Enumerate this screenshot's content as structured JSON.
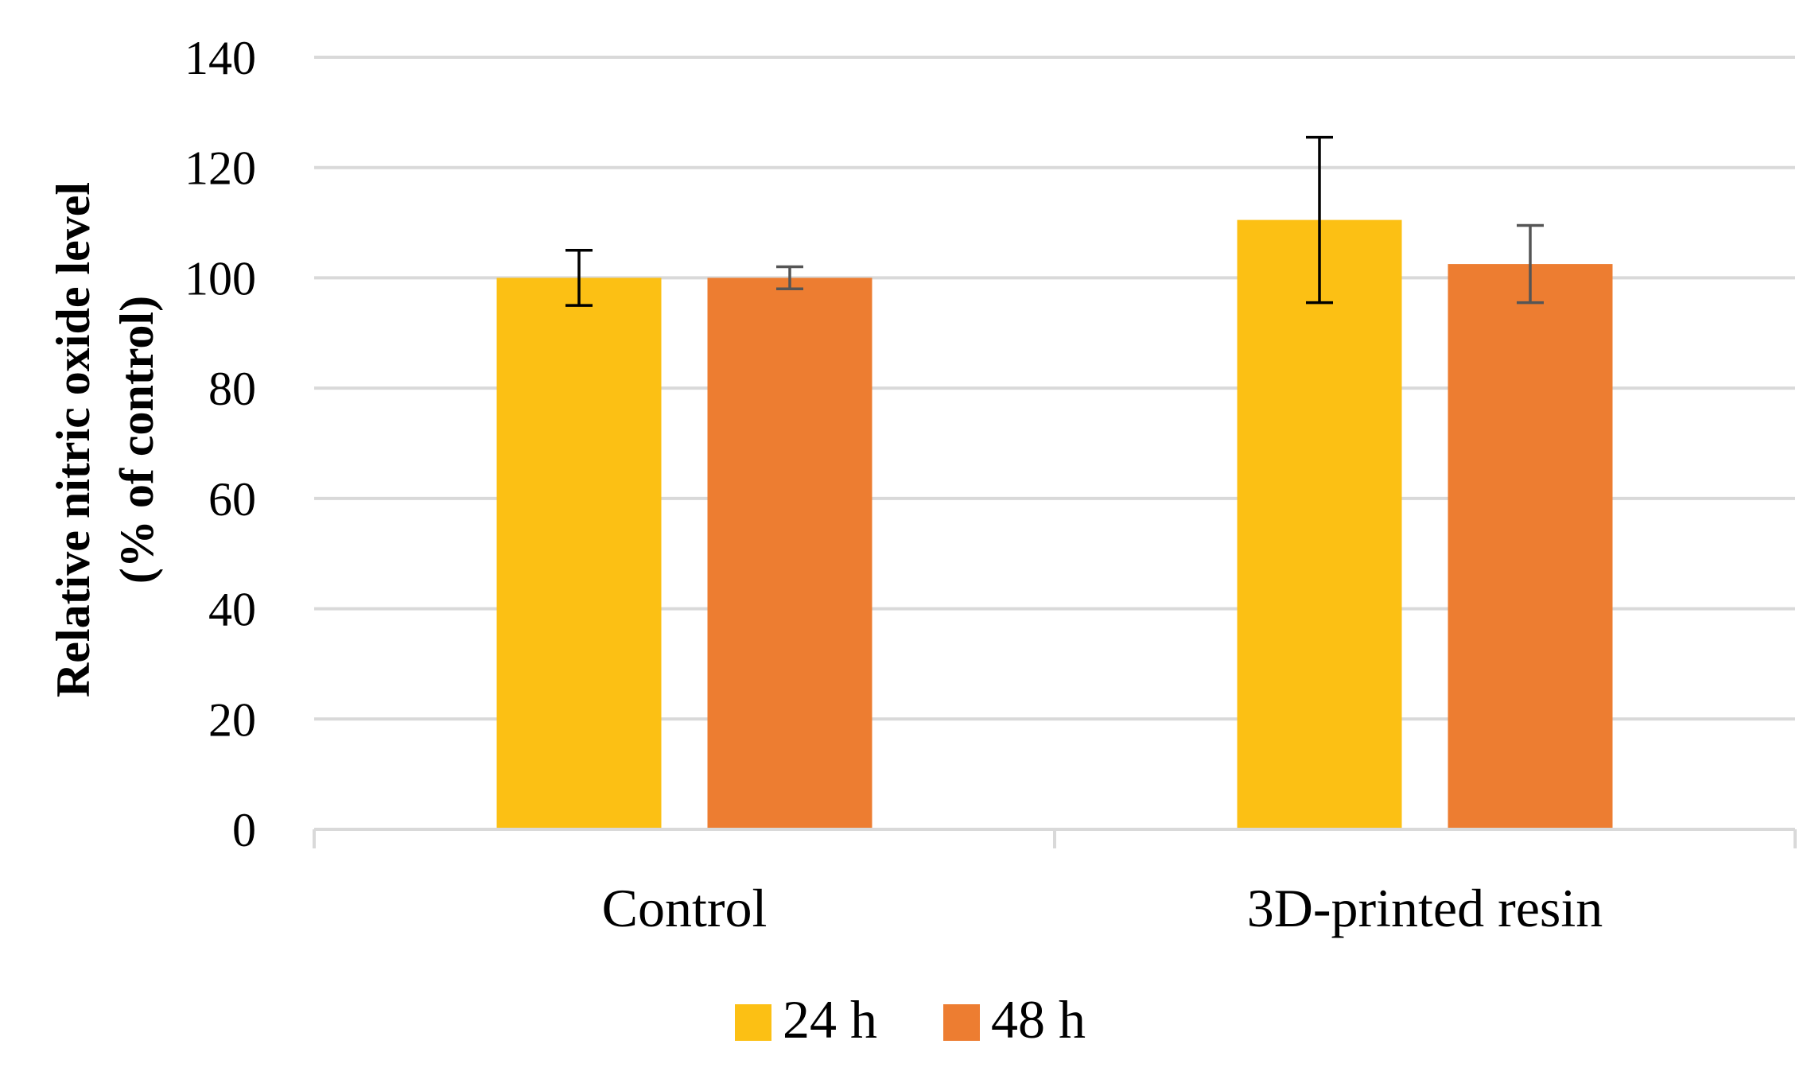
{
  "chart_data": {
    "type": "bar",
    "title": "",
    "xlabel": "",
    "ylabel_lines": [
      "Relative nitric oxide level",
      "(% of control)"
    ],
    "categories": [
      "Control",
      "3D-printed resin"
    ],
    "ylim": [
      0,
      140
    ],
    "yticks": [
      0,
      20,
      40,
      60,
      80,
      100,
      120,
      140
    ],
    "grid": true,
    "legend_position": "bottom",
    "series": [
      {
        "name": "24 h",
        "color": "#fcc014",
        "values": [
          100,
          110.5
        ],
        "errors": [
          5,
          15
        ],
        "error_color": "#000000"
      },
      {
        "name": "48 h",
        "color": "#ed7d31",
        "values": [
          100,
          102.5
        ],
        "errors": [
          2,
          7
        ],
        "error_color": "#555555"
      }
    ]
  }
}
